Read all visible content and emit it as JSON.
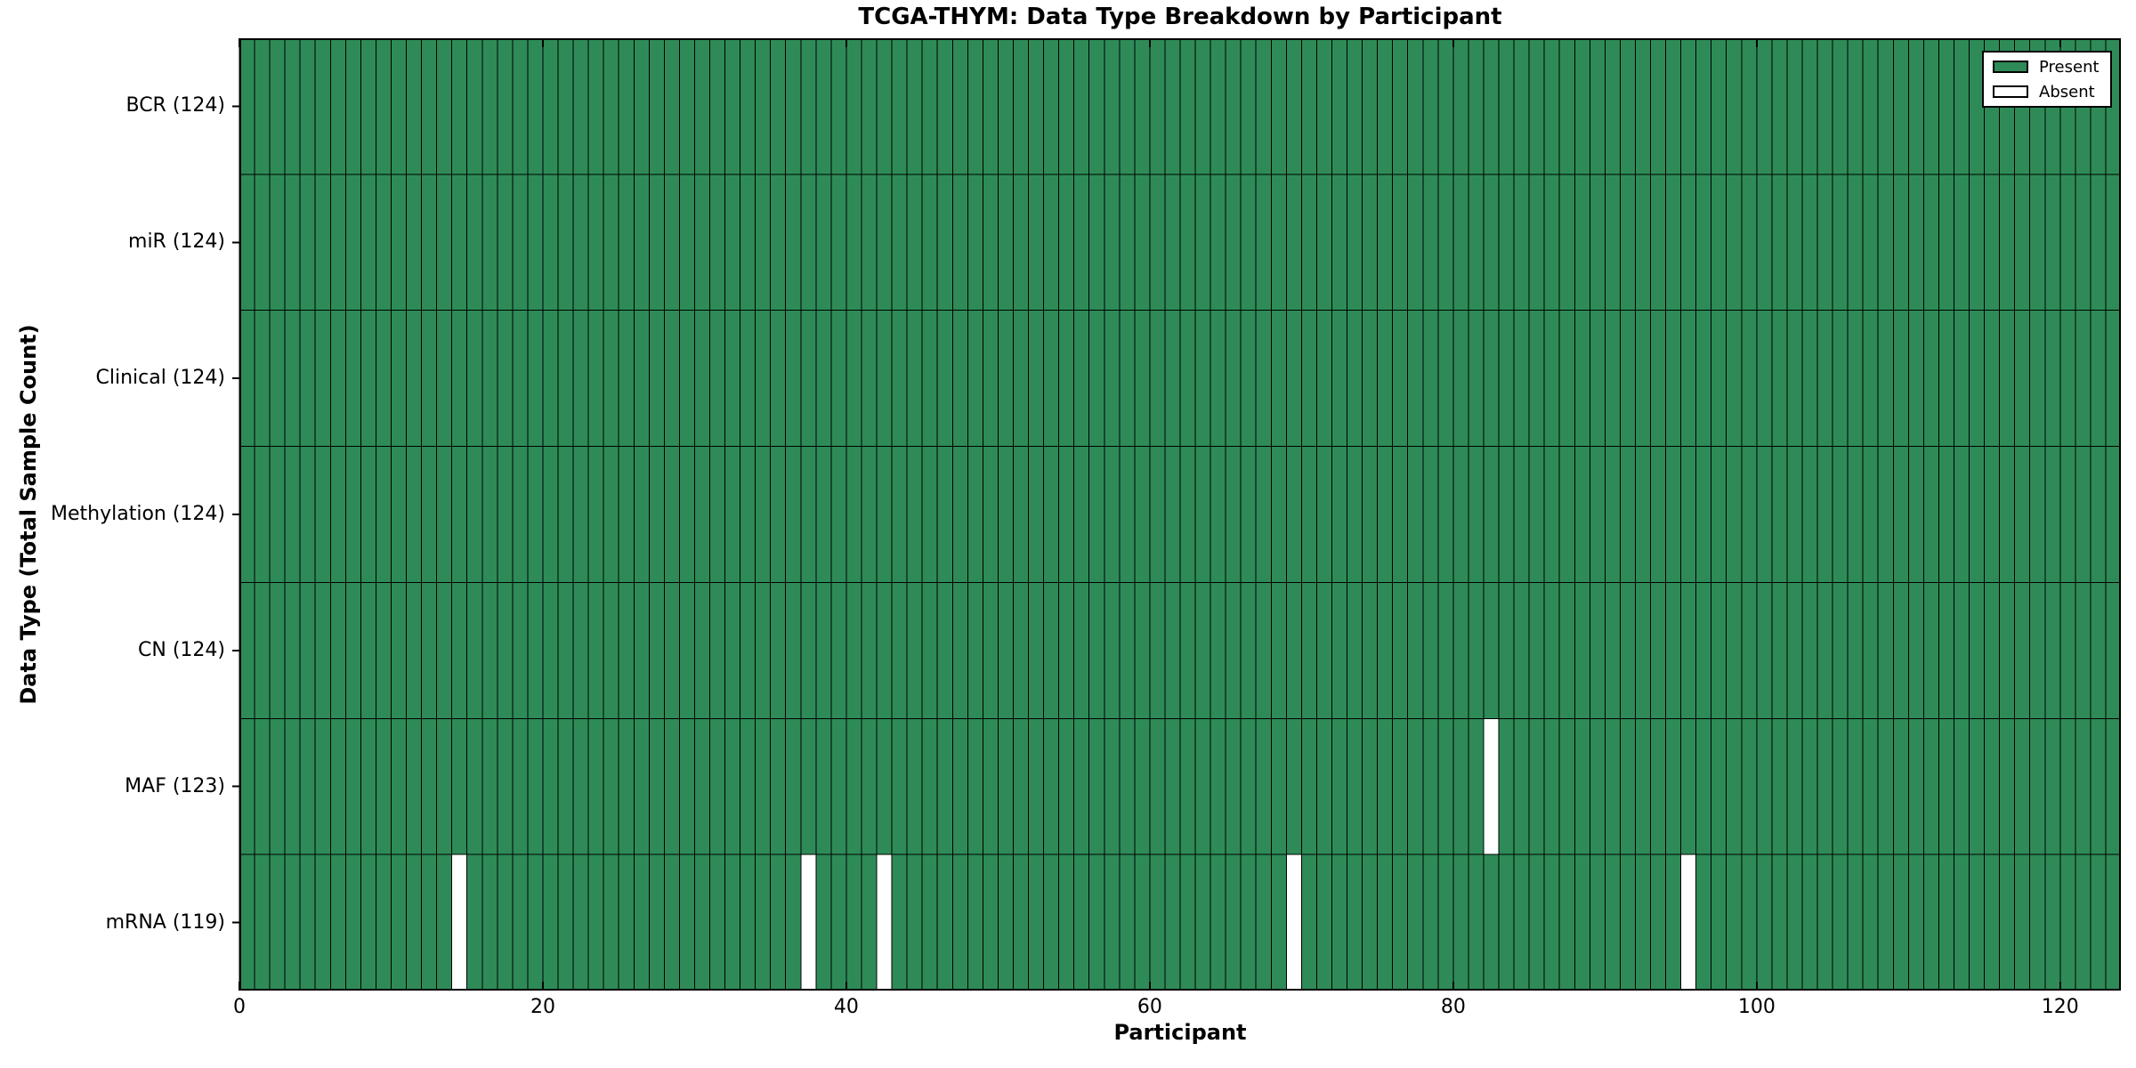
{
  "chart_data": {
    "type": "heatmap",
    "title": "TCGA-THYM: Data Type Breakdown by Participant",
    "xlabel": "Participant",
    "ylabel": "Data Type (Total Sample Count)",
    "participants": 124,
    "xlim": [
      0,
      124
    ],
    "x_ticks": [
      0,
      20,
      40,
      60,
      80,
      100,
      120
    ],
    "grid": false,
    "legend_position": "upper right",
    "rows": [
      {
        "label": "BCR (124)",
        "data_type": "BCR",
        "present_count": 124,
        "absent_participants": []
      },
      {
        "label": "miR (124)",
        "data_type": "miR",
        "present_count": 124,
        "absent_participants": []
      },
      {
        "label": "Clinical (124)",
        "data_type": "Clinical",
        "present_count": 124,
        "absent_participants": []
      },
      {
        "label": "Methylation (124)",
        "data_type": "Methylation",
        "present_count": 124,
        "absent_participants": []
      },
      {
        "label": "CN (124)",
        "data_type": "CN",
        "present_count": 124,
        "absent_participants": []
      },
      {
        "label": "MAF (123)",
        "data_type": "MAF",
        "present_count": 123,
        "absent_participants": [
          82
        ]
      },
      {
        "label": "mRNA (119)",
        "data_type": "mRNA",
        "present_count": 119,
        "absent_participants": [
          14,
          37,
          42,
          69,
          95
        ]
      }
    ],
    "legend": [
      {
        "label": "Present",
        "color": "#2e8b57"
      },
      {
        "label": "Absent",
        "color": "#ffffff"
      }
    ],
    "colors": {
      "present": "#2e8b57",
      "absent": "#ffffff",
      "edge": "#000000",
      "frame": "#000000",
      "background": "#ffffff"
    }
  }
}
